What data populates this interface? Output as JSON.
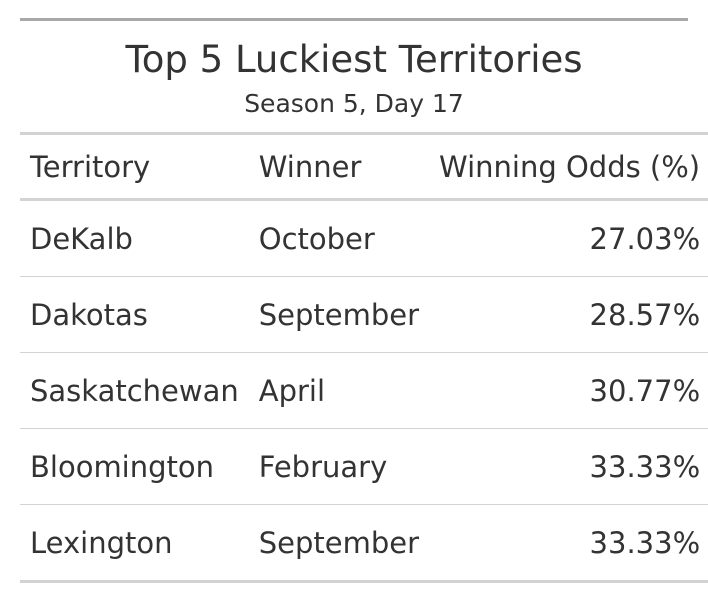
{
  "chart_data": {
    "type": "table",
    "title": "Top 5 Luckiest Territories",
    "subtitle": "Season 5, Day 17",
    "columns": [
      "Territory",
      "Winner",
      "Winning Odds (%)"
    ],
    "rows": [
      [
        "DeKalb",
        "October",
        "27.03%"
      ],
      [
        "Dakotas",
        "September",
        "28.57%"
      ],
      [
        "Saskatchewan",
        "April",
        "30.77%"
      ],
      [
        "Bloomington",
        "February",
        "33.33%"
      ],
      [
        "Lexington",
        "September",
        "33.33%"
      ]
    ]
  }
}
